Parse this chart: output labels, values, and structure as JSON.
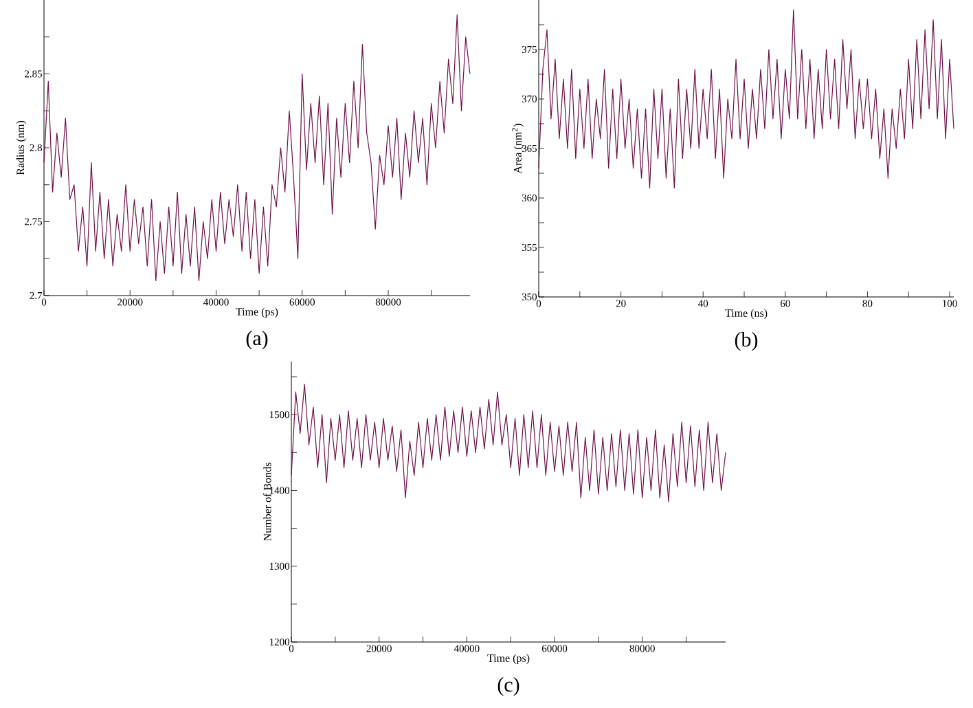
{
  "chart_data": [
    {
      "type": "line",
      "xlabel": "Time (ps)",
      "ylabel": "Radius (nm)",
      "annotations": [
        "(a)"
      ],
      "xlim": [
        0,
        99000
      ],
      "ylim": [
        2.7,
        2.9
      ],
      "xticks": [
        0,
        {
          "value": 10000,
          "label": null
        },
        20000,
        {
          "value": 30000,
          "label": null
        },
        40000,
        {
          "value": 50000,
          "label": null
        },
        60000,
        {
          "value": 70000,
          "label": null
        },
        80000,
        {
          "value": 90000,
          "label": null
        }
      ],
      "yticks": [
        2.7,
        {
          "value": 2.725,
          "label": null
        },
        2.75,
        {
          "value": 2.775,
          "label": null
        },
        2.8,
        {
          "value": 2.825,
          "label": null
        },
        2.85,
        {
          "value": 2.875,
          "label": null
        }
      ],
      "series": [
        {
          "color": "#6e1048",
          "x": [
            0,
            1000,
            2000,
            3000,
            4000,
            5000,
            6000,
            7000,
            8000,
            9000,
            10000,
            11000,
            12000,
            13000,
            14000,
            15000,
            16000,
            17000,
            18000,
            19000,
            20000,
            21000,
            22000,
            23000,
            24000,
            25000,
            26000,
            27000,
            28000,
            29000,
            30000,
            31000,
            32000,
            33000,
            34000,
            35000,
            36000,
            37000,
            38000,
            39000,
            40000,
            41000,
            42000,
            43000,
            44000,
            45000,
            46000,
            47000,
            48000,
            49000,
            50000,
            51000,
            52000,
            53000,
            54000,
            55000,
            56000,
            57000,
            58000,
            59000,
            60000,
            61000,
            62000,
            63000,
            64000,
            65000,
            66000,
            67000,
            68000,
            69000,
            70000,
            71000,
            72000,
            73000,
            74000,
            75000,
            76000,
            77000,
            78000,
            79000,
            80000,
            81000,
            82000,
            83000,
            84000,
            85000,
            86000,
            87000,
            88000,
            89000,
            90000,
            91000,
            92000,
            93000,
            94000,
            95000,
            96000,
            97000,
            98000,
            99000
          ],
          "values": [
            2.79,
            2.845,
            2.77,
            2.81,
            2.78,
            2.82,
            2.765,
            2.775,
            2.73,
            2.76,
            2.72,
            2.79,
            2.73,
            2.77,
            2.725,
            2.765,
            2.72,
            2.755,
            2.73,
            2.775,
            2.73,
            2.765,
            2.735,
            2.76,
            2.72,
            2.765,
            2.71,
            2.75,
            2.715,
            2.76,
            2.72,
            2.77,
            2.715,
            2.755,
            2.72,
            2.76,
            2.71,
            2.75,
            2.725,
            2.765,
            2.73,
            2.77,
            2.735,
            2.765,
            2.74,
            2.775,
            2.73,
            2.77,
            2.725,
            2.765,
            2.715,
            2.76,
            2.72,
            2.775,
            2.76,
            2.8,
            2.77,
            2.825,
            2.78,
            2.725,
            2.85,
            2.785,
            2.83,
            2.79,
            2.835,
            2.775,
            2.83,
            2.755,
            2.82,
            2.78,
            2.83,
            2.79,
            2.845,
            2.8,
            2.87,
            2.81,
            2.79,
            2.745,
            2.795,
            2.775,
            2.815,
            2.78,
            2.82,
            2.765,
            2.81,
            2.78,
            2.825,
            2.79,
            2.82,
            2.775,
            2.83,
            2.8,
            2.845,
            2.81,
            2.86,
            2.83,
            2.89,
            2.825,
            2.875,
            2.85
          ]
        }
      ]
    },
    {
      "type": "line",
      "xlabel": "Time (ns)",
      "ylabel": "Area (nm$^{2}$)",
      "annotations": [
        "(b)"
      ],
      "xlim": [
        0,
        101
      ],
      "ylim": [
        350,
        380
      ],
      "xticks": [
        0,
        {
          "value": 10,
          "label": null
        },
        20,
        {
          "value": 30,
          "label": null
        },
        40,
        {
          "value": 50,
          "label": null
        },
        60,
        {
          "value": 70,
          "label": null
        },
        80,
        {
          "value": 90,
          "label": null
        },
        100
      ],
      "yticks": [
        350,
        {
          "value": 352.5,
          "label": null
        },
        355,
        {
          "value": 357.5,
          "label": null
        },
        360,
        {
          "value": 362.5,
          "label": null
        },
        365,
        {
          "value": 367.5,
          "label": null
        },
        370,
        {
          "value": 372.5,
          "label": null
        },
        375,
        {
          "value": 377.5,
          "label": null
        }
      ],
      "series": [
        {
          "color": "#6e1048",
          "x": [
            0,
            1,
            2,
            3,
            4,
            5,
            6,
            7,
            8,
            9,
            10,
            11,
            12,
            13,
            14,
            15,
            16,
            17,
            18,
            19,
            20,
            21,
            22,
            23,
            24,
            25,
            26,
            27,
            28,
            29,
            30,
            31,
            32,
            33,
            34,
            35,
            36,
            37,
            38,
            39,
            40,
            41,
            42,
            43,
            44,
            45,
            46,
            47,
            48,
            49,
            50,
            51,
            52,
            53,
            54,
            55,
            56,
            57,
            58,
            59,
            60,
            61,
            62,
            63,
            64,
            65,
            66,
            67,
            68,
            69,
            70,
            71,
            72,
            73,
            74,
            75,
            76,
            77,
            78,
            79,
            80,
            81,
            82,
            83,
            84,
            85,
            86,
            87,
            88,
            89,
            90,
            91,
            92,
            93,
            94,
            95,
            96,
            97,
            98,
            99,
            100,
            101
          ],
          "values": [
            363,
            373,
            377,
            368,
            374,
            366,
            372,
            365,
            373,
            364,
            371,
            365,
            372,
            364,
            370,
            366,
            373,
            363,
            371,
            364,
            372,
            365,
            370,
            363,
            369,
            362,
            369,
            361,
            371,
            364,
            371,
            362,
            369,
            361,
            372,
            364,
            371,
            365,
            373,
            365,
            371,
            366,
            373,
            364,
            371,
            362,
            370,
            366,
            374,
            366,
            372,
            365,
            371,
            366,
            373,
            367,
            375,
            368,
            374,
            366,
            373,
            368,
            379,
            368,
            375,
            367,
            374,
            366,
            373,
            367,
            375,
            368,
            374,
            367,
            376,
            369,
            375,
            366,
            372,
            367,
            372,
            366,
            371,
            364,
            369,
            362,
            369,
            365,
            371,
            366,
            374,
            367,
            376,
            368,
            377,
            369,
            378,
            368,
            376,
            366,
            374,
            367
          ]
        }
      ]
    },
    {
      "type": "line",
      "xlabel": "Time (ps)",
      "ylabel": "Number of Bonds",
      "annotations": [
        "(c)"
      ],
      "xlim": [
        0,
        99000
      ],
      "ylim": [
        1200,
        1570
      ],
      "xticks": [
        0,
        {
          "value": 10000,
          "label": null
        },
        20000,
        {
          "value": 30000,
          "label": null
        },
        40000,
        {
          "value": 50000,
          "label": null
        },
        60000,
        {
          "value": 70000,
          "label": null
        },
        80000,
        {
          "value": 90000,
          "label": null
        }
      ],
      "yticks": [
        1200,
        {
          "value": 1250,
          "label": null
        },
        1300,
        {
          "value": 1350,
          "label": null
        },
        1400,
        {
          "value": 1450,
          "label": null
        },
        1500,
        {
          "value": 1550,
          "label": null
        }
      ],
      "series": [
        {
          "color": "#6e1048",
          "x": [
            0,
            1000,
            2000,
            3000,
            4000,
            5000,
            6000,
            7000,
            8000,
            9000,
            10000,
            11000,
            12000,
            13000,
            14000,
            15000,
            16000,
            17000,
            18000,
            19000,
            20000,
            21000,
            22000,
            23000,
            24000,
            25000,
            26000,
            27000,
            28000,
            29000,
            30000,
            31000,
            32000,
            33000,
            34000,
            35000,
            36000,
            37000,
            38000,
            39000,
            40000,
            41000,
            42000,
            43000,
            44000,
            45000,
            46000,
            47000,
            48000,
            49000,
            50000,
            51000,
            52000,
            53000,
            54000,
            55000,
            56000,
            57000,
            58000,
            59000,
            60000,
            61000,
            62000,
            63000,
            64000,
            65000,
            66000,
            67000,
            68000,
            69000,
            70000,
            71000,
            72000,
            73000,
            74000,
            75000,
            76000,
            77000,
            78000,
            79000,
            80000,
            81000,
            82000,
            83000,
            84000,
            85000,
            86000,
            87000,
            88000,
            89000,
            90000,
            91000,
            92000,
            93000,
            94000,
            95000,
            96000,
            97000,
            98000,
            99000
          ],
          "values": [
            1420,
            1530,
            1475,
            1540,
            1460,
            1510,
            1430,
            1500,
            1410,
            1495,
            1440,
            1500,
            1430,
            1505,
            1440,
            1495,
            1430,
            1500,
            1440,
            1490,
            1430,
            1495,
            1440,
            1485,
            1425,
            1480,
            1390,
            1465,
            1420,
            1490,
            1430,
            1495,
            1440,
            1500,
            1440,
            1510,
            1445,
            1505,
            1450,
            1510,
            1445,
            1505,
            1450,
            1510,
            1455,
            1520,
            1460,
            1530,
            1460,
            1500,
            1430,
            1495,
            1420,
            1500,
            1430,
            1505,
            1430,
            1500,
            1420,
            1490,
            1425,
            1485,
            1420,
            1490,
            1425,
            1490,
            1390,
            1470,
            1400,
            1480,
            1395,
            1470,
            1400,
            1475,
            1405,
            1480,
            1400,
            1475,
            1395,
            1480,
            1390,
            1470,
            1400,
            1480,
            1390,
            1460,
            1385,
            1475,
            1405,
            1490,
            1410,
            1485,
            1405,
            1480,
            1400,
            1490,
            1410,
            1475,
            1400,
            1450
          ]
        }
      ]
    }
  ]
}
